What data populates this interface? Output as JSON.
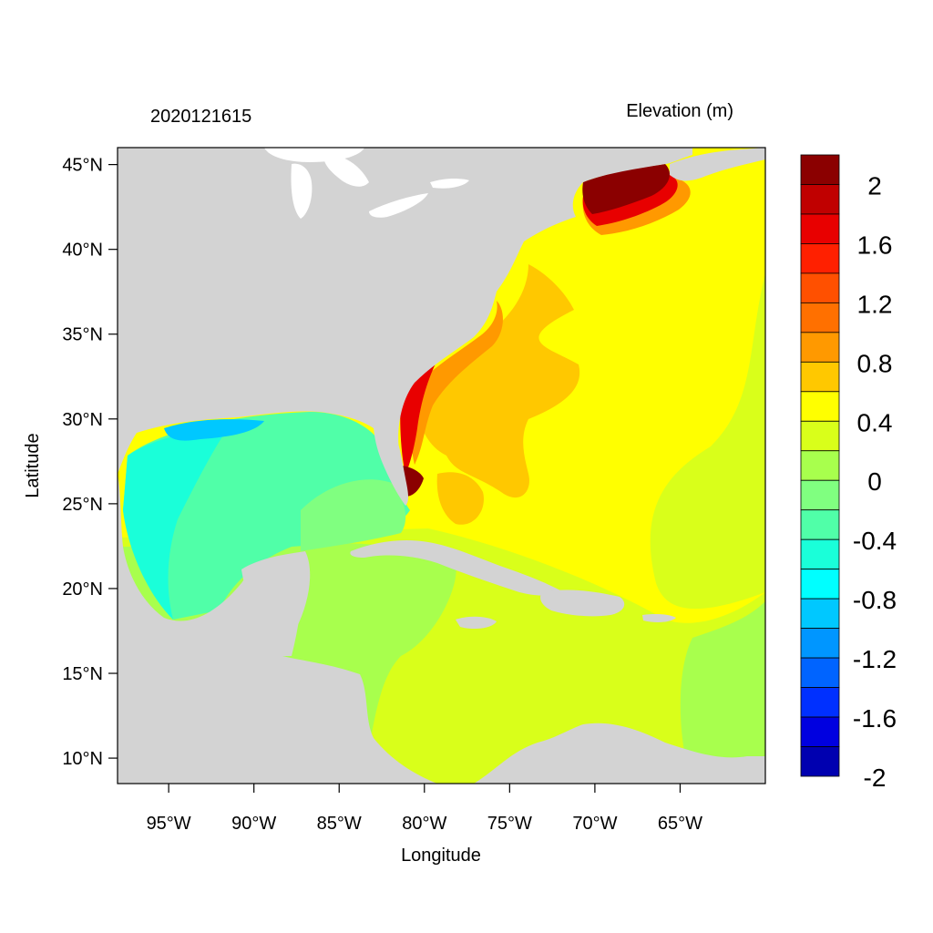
{
  "header": {
    "timestamp": "2020121615",
    "variable_title": "Elevation (m)"
  },
  "axes": {
    "xlabel": "Longitude",
    "ylabel": "Latitude",
    "lon_range": [
      -98,
      -60
    ],
    "lat_range": [
      8.5,
      46
    ],
    "x_ticks": [
      {
        "value": -95,
        "label": "95°W"
      },
      {
        "value": -90,
        "label": "90°W"
      },
      {
        "value": -85,
        "label": "85°W"
      },
      {
        "value": -80,
        "label": "80°W"
      },
      {
        "value": -75,
        "label": "75°W"
      },
      {
        "value": -70,
        "label": "70°W"
      },
      {
        "value": -65,
        "label": "65°W"
      }
    ],
    "y_ticks": [
      {
        "value": 45,
        "label": "45°N"
      },
      {
        "value": 40,
        "label": "40°N"
      },
      {
        "value": 35,
        "label": "35°N"
      },
      {
        "value": 30,
        "label": "30°N"
      },
      {
        "value": 25,
        "label": "25°N"
      },
      {
        "value": 20,
        "label": "20°N"
      },
      {
        "value": 15,
        "label": "15°N"
      },
      {
        "value": 10,
        "label": "10°N"
      }
    ]
  },
  "colorbar": {
    "bins_top_to_bottom": [
      "#8b0000",
      "#c00000",
      "#e80000",
      "#ff2000",
      "#ff5000",
      "#ff7000",
      "#ff9900",
      "#ffc800",
      "#ffff00",
      "#d9ff1a",
      "#a8ff4d",
      "#80ff80",
      "#50ffa8",
      "#1affd9",
      "#00ffff",
      "#00c8ff",
      "#0096ff",
      "#0064ff",
      "#0030ff",
      "#0000e0",
      "#0000b0"
    ],
    "labels": [
      "2",
      "1.6",
      "1.2",
      "0.8",
      "0.4",
      "0",
      "-0.4",
      "-0.8",
      "-1.2",
      "-1.6",
      "-2"
    ]
  },
  "colors": {
    "land": "#d3d3d3",
    "lakes": "#ffffff",
    "ocean_default": "#ffff00"
  }
}
